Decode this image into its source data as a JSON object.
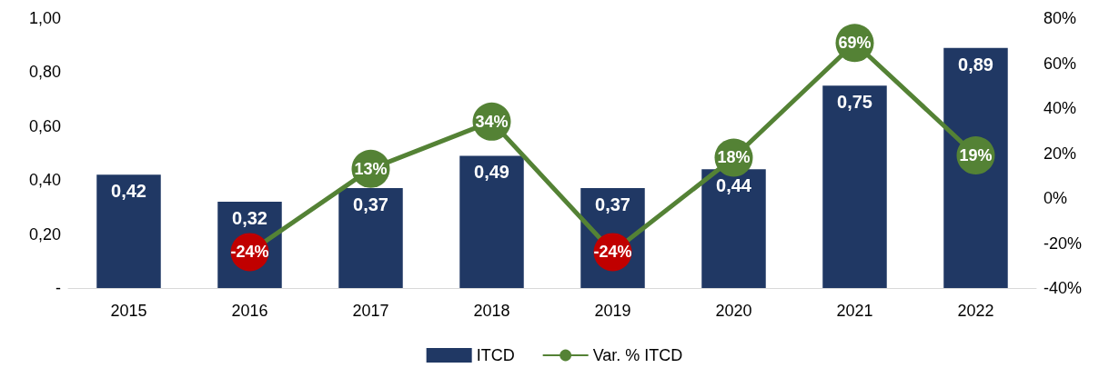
{
  "chart_data": {
    "type": "bar",
    "categories": [
      "2015",
      "2016",
      "2017",
      "2018",
      "2019",
      "2020",
      "2021",
      "2022"
    ],
    "series": [
      {
        "name": "ITCD",
        "color": "#203864",
        "values": [
          0.42,
          0.32,
          0.37,
          0.49,
          0.37,
          0.44,
          0.75,
          0.89
        ],
        "value_labels": [
          "0,42",
          "0,32",
          "0,37",
          "0,49",
          "0,37",
          "0,44",
          "0,75",
          "0,89"
        ]
      },
      {
        "name": "Var. % ITCD",
        "type": "line",
        "axis": "y2",
        "color": "#548235",
        "colors": [
          null,
          "#c00000",
          "#548235",
          "#548235",
          "#c00000",
          "#548235",
          "#548235",
          "#548235"
        ],
        "values": [
          null,
          -24,
          13,
          34,
          -24,
          18,
          69,
          19
        ],
        "value_labels": [
          null,
          "-24%",
          "13%",
          "34%",
          "-24%",
          "18%",
          "69%",
          "19%"
        ]
      }
    ],
    "ylim": [
      0,
      1
    ],
    "yticks": [
      {
        "value": 0,
        "label": "-"
      },
      {
        "value": 0.2,
        "label": "0,20"
      },
      {
        "value": 0.4,
        "label": "0,40"
      },
      {
        "value": 0.6,
        "label": "0,60"
      },
      {
        "value": 0.8,
        "label": "0,80"
      },
      {
        "value": 1,
        "label": "1,00"
      }
    ],
    "y2lim": [
      -40,
      80
    ],
    "y2ticks": [
      {
        "value": -40,
        "label": "-40%"
      },
      {
        "value": -20,
        "label": "-20%"
      },
      {
        "value": 0,
        "label": "0%"
      },
      {
        "value": 20,
        "label": "20%"
      },
      {
        "value": 40,
        "label": "40%"
      },
      {
        "value": 60,
        "label": "60%"
      },
      {
        "value": 80,
        "label": "80%"
      }
    ],
    "legend": "bottom",
    "grid": false,
    "marker": "circle"
  }
}
